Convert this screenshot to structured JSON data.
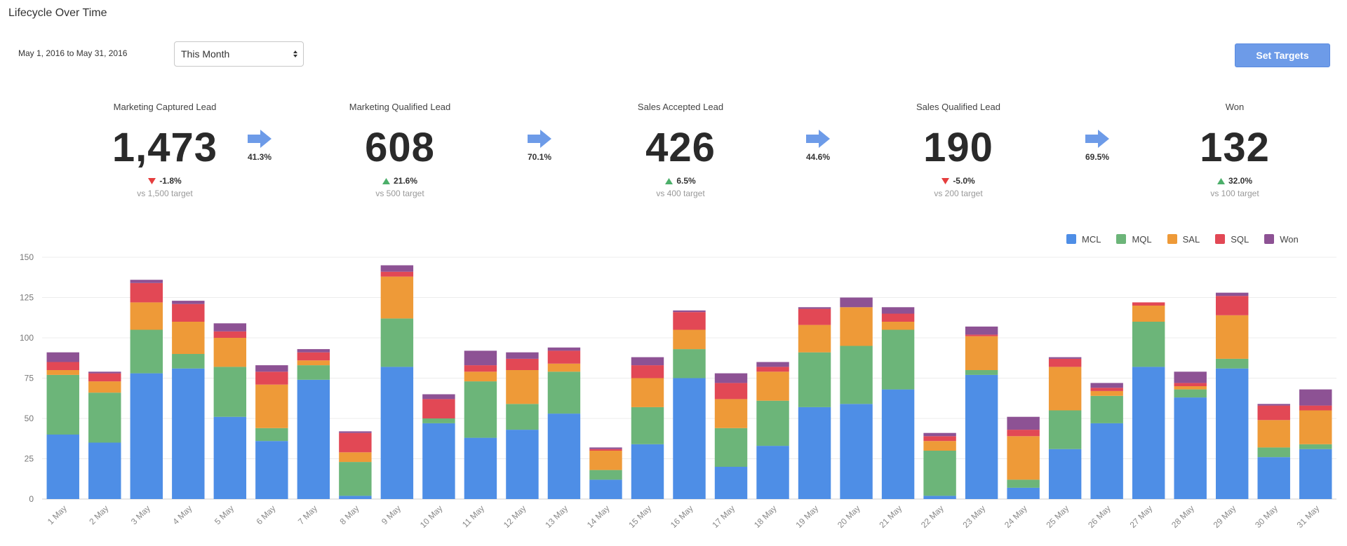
{
  "page_title": "Lifecycle Over Time",
  "date_range": "May 1, 2016  to May 31, 2016",
  "period_select": {
    "value": "This Month"
  },
  "set_targets_label": "Set Targets",
  "kpis": [
    {
      "label": "Marketing Captured Lead",
      "value": "1,473",
      "delta": "-1.8%",
      "direction": "down",
      "target": "vs 1,500 target"
    },
    {
      "label": "Marketing Qualified Lead",
      "value": "608",
      "delta": "21.6%",
      "direction": "up",
      "target": "vs 500 target"
    },
    {
      "label": "Sales Accepted Lead",
      "value": "426",
      "delta": "6.5%",
      "direction": "up",
      "target": "vs 400 target"
    },
    {
      "label": "Sales Qualified Lead",
      "value": "190",
      "delta": "-5.0%",
      "direction": "down",
      "target": "vs 200 target"
    },
    {
      "label": "Won",
      "value": "132",
      "delta": "32.0%",
      "direction": "up",
      "target": "vs 100 target"
    }
  ],
  "conversions": [
    "41.3%",
    "70.1%",
    "44.6%",
    "69.5%"
  ],
  "colors": {
    "up": "#4caf6a",
    "down": "#e53e3e",
    "arrow": "#6d9be8",
    "button": "#6d9be8"
  },
  "chart_data": {
    "type": "bar",
    "stacked": true,
    "categories": [
      "1 May",
      "2 May",
      "3 May",
      "4 May",
      "5 May",
      "6 May",
      "7 May",
      "8 May",
      "9 May",
      "10 May",
      "11 May",
      "12 May",
      "13 May",
      "14 May",
      "15 May",
      "16 May",
      "17 May",
      "18 May",
      "19 May",
      "20 May",
      "21 May",
      "22 May",
      "23 May",
      "24 May",
      "25 May",
      "26 May",
      "27 May",
      "28 May",
      "29 May",
      "30 May",
      "31 May"
    ],
    "series": [
      {
        "name": "MCL",
        "color": "#4e8ee6",
        "values": [
          40,
          35,
          78,
          81,
          51,
          36,
          74,
          2,
          82,
          47,
          38,
          43,
          53,
          12,
          34,
          75,
          20,
          33,
          57,
          59,
          68,
          2,
          77,
          7,
          31,
          47,
          82,
          63,
          81,
          26,
          31
        ]
      },
      {
        "name": "MQL",
        "color": "#6cb579",
        "values": [
          37,
          31,
          27,
          9,
          31,
          8,
          9,
          21,
          30,
          3,
          35,
          16,
          26,
          6,
          23,
          18,
          24,
          28,
          34,
          36,
          37,
          28,
          3,
          5,
          24,
          17,
          28,
          5,
          6,
          6,
          3
        ]
      },
      {
        "name": "SAL",
        "color": "#ee9a38",
        "values": [
          3,
          7,
          17,
          20,
          18,
          27,
          3,
          6,
          26,
          0,
          6,
          21,
          5,
          12,
          18,
          12,
          18,
          18,
          17,
          24,
          5,
          6,
          21,
          27,
          27,
          3,
          10,
          2,
          27,
          17,
          21
        ]
      },
      {
        "name": "SQL",
        "color": "#e24855",
        "values": [
          5,
          5,
          12,
          11,
          4,
          8,
          5,
          12,
          3,
          12,
          4,
          7,
          8,
          1,
          8,
          11,
          10,
          3,
          10,
          0,
          5,
          3,
          1,
          4,
          5,
          2,
          2,
          2,
          12,
          9,
          3
        ]
      },
      {
        "name": "Won",
        "color": "#8d5294",
        "values": [
          6,
          1,
          2,
          2,
          5,
          4,
          2,
          1,
          4,
          3,
          9,
          4,
          2,
          1,
          5,
          1,
          6,
          3,
          1,
          6,
          4,
          2,
          5,
          8,
          1,
          3,
          0,
          7,
          2,
          1,
          10
        ]
      }
    ],
    "ylim": [
      0,
      150
    ],
    "yticks": [
      0,
      25,
      50,
      75,
      100,
      125,
      150
    ],
    "grid": true,
    "legend_position": "top-right",
    "xlabel": "",
    "ylabel": ""
  }
}
